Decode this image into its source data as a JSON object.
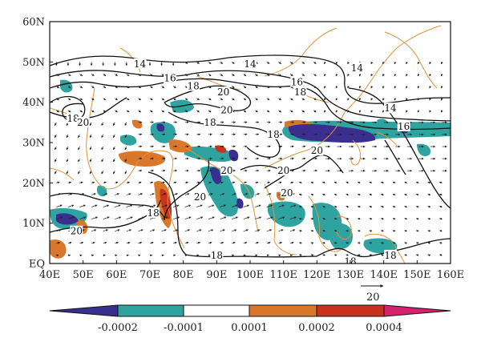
{
  "map": {
    "lat_labels": [
      "60N",
      "50N",
      "40N",
      "30N",
      "20N",
      "10N",
      "EQ"
    ],
    "lon_labels": [
      "40E",
      "50E",
      "60E",
      "70E",
      "80E",
      "90E",
      "100E",
      "110E",
      "120E",
      "130E",
      "140E",
      "150E",
      "160E"
    ],
    "lon_range": [
      40,
      160
    ],
    "lat_range": [
      0,
      60
    ],
    "contour_labels": [
      {
        "text": "14",
        "lon": 67,
        "lat": 49.5
      },
      {
        "text": "14",
        "lon": 100,
        "lat": 49.5
      },
      {
        "text": "14",
        "lon": 132,
        "lat": 48.5
      },
      {
        "text": "14",
        "lon": 142,
        "lat": 38.5
      },
      {
        "text": "16",
        "lon": 76,
        "lat": 46
      },
      {
        "text": "16",
        "lon": 114,
        "lat": 45
      },
      {
        "text": "16",
        "lon": 146,
        "lat": 34
      },
      {
        "text": "18",
        "lon": 83,
        "lat": 44
      },
      {
        "text": "18",
        "lon": 115,
        "lat": 42.5
      },
      {
        "text": "18",
        "lon": 47,
        "lat": 36
      },
      {
        "text": "18",
        "lon": 88,
        "lat": 35
      },
      {
        "text": "18",
        "lon": 107,
        "lat": 32
      },
      {
        "text": "18",
        "lon": 71,
        "lat": 12.5
      },
      {
        "text": "18",
        "lon": 90,
        "lat": 2
      },
      {
        "text": "18",
        "lon": 130,
        "lat": 0.5
      },
      {
        "text": "18",
        "lon": 142,
        "lat": 2
      },
      {
        "text": "20",
        "lon": 92,
        "lat": 42.5
      },
      {
        "text": "20",
        "lon": 50,
        "lat": 35
      },
      {
        "text": "20",
        "lon": 93,
        "lat": 38
      },
      {
        "text": "20",
        "lon": 120,
        "lat": 28
      },
      {
        "text": "20",
        "lon": 93,
        "lat": 23
      },
      {
        "text": "20",
        "lon": 110,
        "lat": 23
      },
      {
        "text": "20",
        "lon": 85,
        "lat": 16.5
      },
      {
        "text": "20",
        "lon": 111,
        "lat": 17.5
      },
      {
        "text": "20",
        "lon": 48,
        "lat": 8
      }
    ],
    "reference_vector": "20",
    "colors": {
      "neg_strong": "#3a2f8f",
      "neg": "#2ea3a0",
      "zero": "#ffffff",
      "pos": "#d9782a",
      "pos_strong": "#c8321e",
      "pos_max": "#d4226e",
      "coast": "#e0933a",
      "contour": "#111111"
    }
  },
  "colorbar": {
    "labels": [
      "-0.0002",
      "-0.0001",
      "0.0001",
      "0.0002",
      "0.0004"
    ]
  }
}
